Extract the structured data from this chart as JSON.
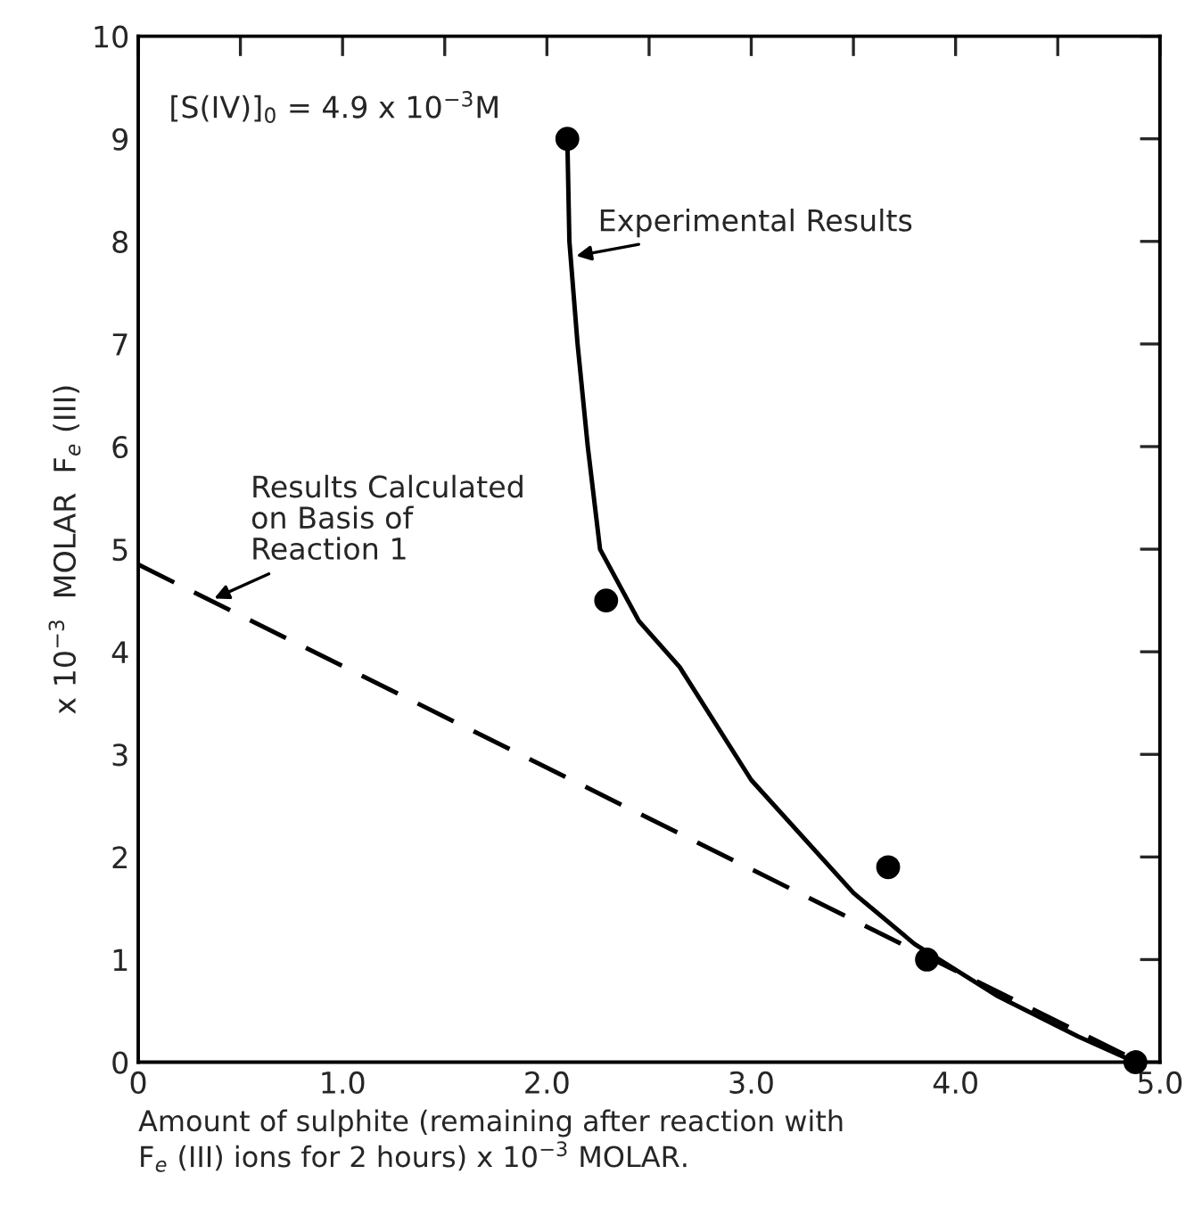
{
  "chart_data": {
    "type": "scatter",
    "xlabel": "Amount of sulphite (remaining after reaction with\nF$_{e}$ (III) ions for 2 hours) x 10$^{−3}$ MOLAR.",
    "ylabel": "x 10$^{−3}$  MOLAR  F$_{e}$ (III)",
    "xlim": [
      0,
      5.0
    ],
    "ylim": [
      0,
      10
    ],
    "xticks": [
      {
        "value": 0,
        "label": "0"
      },
      {
        "value": 0.5,
        "label": null
      },
      {
        "value": 1.0,
        "label": "1.0"
      },
      {
        "value": 1.5,
        "label": null
      },
      {
        "value": 2.0,
        "label": "2.0"
      },
      {
        "value": 2.5,
        "label": null
      },
      {
        "value": 3.0,
        "label": "3.0"
      },
      {
        "value": 3.5,
        "label": null
      },
      {
        "value": 4.0,
        "label": "4.0"
      },
      {
        "value": 4.5,
        "label": null
      },
      {
        "value": 5.0,
        "label": "5.0"
      }
    ],
    "yticks": [
      0,
      1,
      2,
      3,
      4,
      5,
      6,
      7,
      8,
      9,
      10
    ],
    "grid": false,
    "legend": false,
    "series": [
      {
        "color": "#000000",
        "marker": "circle",
        "x": [
          2.1,
          2.29,
          3.67,
          3.86,
          4.88
        ],
        "values": [
          9.0,
          4.5,
          1.9,
          1.0,
          0.0
        ]
      },
      {
        "type": "line",
        "color": "#000000",
        "line_style": "solid",
        "x": [
          2.1,
          2.11,
          2.15,
          2.2,
          2.26,
          2.45,
          2.65,
          3.0,
          3.5,
          3.8,
          4.2,
          4.6,
          4.88
        ],
        "values": [
          9.0,
          8.0,
          7.0,
          6.0,
          5.0,
          4.3,
          3.85,
          2.75,
          1.65,
          1.15,
          0.65,
          0.25,
          0.0
        ]
      },
      {
        "type": "line",
        "color": "#000000",
        "line_style": "dashed",
        "x": [
          0,
          4.9
        ],
        "values": [
          4.85,
          0.0
        ]
      }
    ],
    "annotations": [
      "[S(IV)]$_{0}$ = 4.9 x 10$^{−3}$M",
      {
        "text": "Experimental Results",
        "x": 2.12,
        "y": 7.85
      },
      {
        "text": "Results Calculated\non Basis of\nReaction 1",
        "x": 0.35,
        "y": 4.5
      }
    ]
  }
}
